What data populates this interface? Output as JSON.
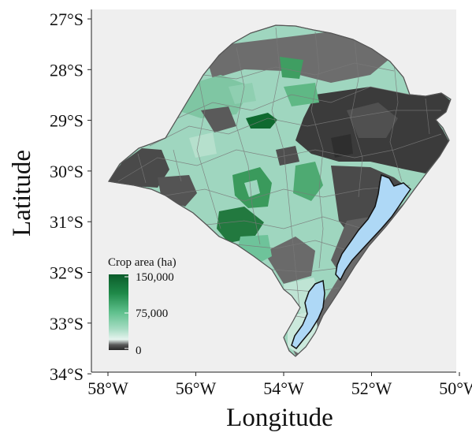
{
  "map": {
    "xlabel": "Longitude",
    "ylabel": "Latitude",
    "x_ticks": [
      "58°W",
      "56°W",
      "54°W",
      "52°W",
      "50°W"
    ],
    "y_ticks": [
      "27°S",
      "28°S",
      "29°S",
      "30°S",
      "31°S",
      "32°S",
      "33°S",
      "34°S"
    ],
    "legend": {
      "title": "Crop area (ha)",
      "labels": [
        "150,000",
        "75,000",
        "0"
      ],
      "values": [
        150000,
        75000,
        0
      ],
      "colors": [
        "#0b5b2a",
        "#1f8a49",
        "#5fc08d",
        "#a6dcc3",
        "#e6f4ef",
        "#4a4a4a",
        "#262626"
      ]
    },
    "colors": {
      "panel_bg": "#efefef",
      "lagoon": "#aed8f6",
      "municipality_border": "#7a7a7a"
    }
  }
}
